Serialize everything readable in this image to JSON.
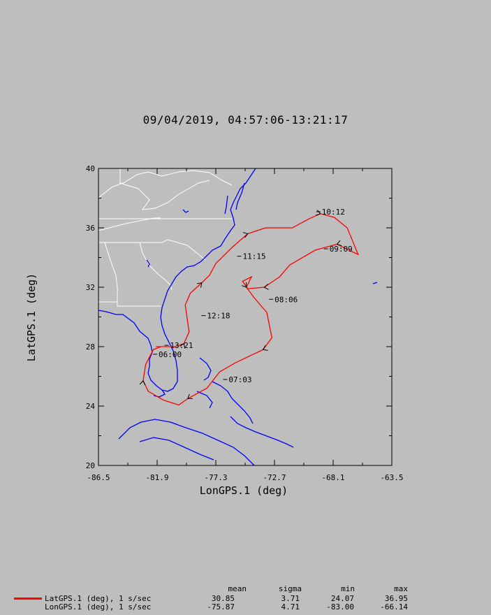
{
  "title": "09/04/2019, 04:57:06-13:21:17",
  "colors": {
    "background": "#bebebe",
    "track": "#ff0000",
    "coast": "#0000ff",
    "border": "#ffffff",
    "axes": "#000000"
  },
  "chart_data": {
    "type": "line",
    "xlabel": "LonGPS.1 (deg)",
    "ylabel": "LatGPS.1 (deg)",
    "xlim": [
      -86.5,
      -63.5
    ],
    "ylim": [
      20,
      40
    ],
    "x_ticks": [
      "-86.5",
      "-81.9",
      "-77.3",
      "-72.7",
      "-68.1",
      "-63.5"
    ],
    "y_ticks": [
      "20",
      "24",
      "28",
      "32",
      "36",
      "40"
    ],
    "track": [
      [
        -82.0,
        28.0
      ],
      [
        -80.5,
        28.0
      ],
      [
        -79.8,
        28.2
      ],
      [
        -79.4,
        29.0
      ],
      [
        -79.7,
        30.8
      ],
      [
        -79.3,
        31.6
      ],
      [
        -78.4,
        32.3
      ],
      [
        -77.8,
        32.8
      ],
      [
        -77.3,
        33.6
      ],
      [
        -76.0,
        34.7
      ],
      [
        -74.8,
        35.6
      ],
      [
        -73.4,
        36.0
      ],
      [
        -71.3,
        36.0
      ],
      [
        -70.0,
        36.6
      ],
      [
        -69.1,
        36.95
      ],
      [
        -68.0,
        36.7
      ],
      [
        -67.0,
        36.0
      ],
      [
        -66.14,
        34.2
      ],
      [
        -67.8,
        34.9
      ],
      [
        -69.5,
        34.5
      ],
      [
        -71.5,
        33.5
      ],
      [
        -72.3,
        32.7
      ],
      [
        -73.5,
        32.0
      ],
      [
        -74.8,
        31.9
      ],
      [
        -75.2,
        32.4
      ],
      [
        -74.5,
        32.7
      ],
      [
        -74.9,
        32.0
      ],
      [
        -74.3,
        31.3
      ],
      [
        -73.3,
        30.3
      ],
      [
        -72.9,
        28.6
      ],
      [
        -73.6,
        27.8
      ],
      [
        -75.8,
        26.9
      ],
      [
        -77.0,
        26.3
      ],
      [
        -78.0,
        25.2
      ],
      [
        -79.5,
        24.5
      ],
      [
        -80.2,
        24.07
      ],
      [
        -81.4,
        24.4
      ],
      [
        -82.6,
        25.0
      ],
      [
        -83.0,
        25.7
      ],
      [
        -82.8,
        26.8
      ],
      [
        -82.2,
        27.8
      ],
      [
        -81.6,
        28.0
      ],
      [
        -80.5,
        28.0
      ]
    ],
    "time_labels": [
      {
        "text": "10:12",
        "lon": -69.1,
        "lat": 36.9
      },
      {
        "text": "09:09",
        "lon": -68.5,
        "lat": 34.4
      },
      {
        "text": "11:15",
        "lon": -75.3,
        "lat": 33.9
      },
      {
        "text": "08:06",
        "lon": -72.8,
        "lat": 31.0
      },
      {
        "text": "12:18",
        "lon": -78.1,
        "lat": 29.9
      },
      {
        "text": "13:21",
        "lon": -81.0,
        "lat": 27.9
      },
      {
        "text": "06:00",
        "lon": -81.9,
        "lat": 27.3
      },
      {
        "text": "07:03",
        "lon": -76.4,
        "lat": 25.6
      }
    ],
    "stats": {
      "headers": [
        "mean",
        "sigma",
        "min",
        "max"
      ],
      "rows": [
        {
          "name": "LatGPS.1 (deg), 1 s/sec",
          "mean": "30.85",
          "sigma": "3.71",
          "min": "24.07",
          "max": "36.95"
        },
        {
          "name": "LonGPS.1 (deg), 1 s/sec",
          "mean": "-75.87",
          "sigma": "4.71",
          "min": "-83.00",
          "max": "-66.14"
        }
      ]
    }
  }
}
